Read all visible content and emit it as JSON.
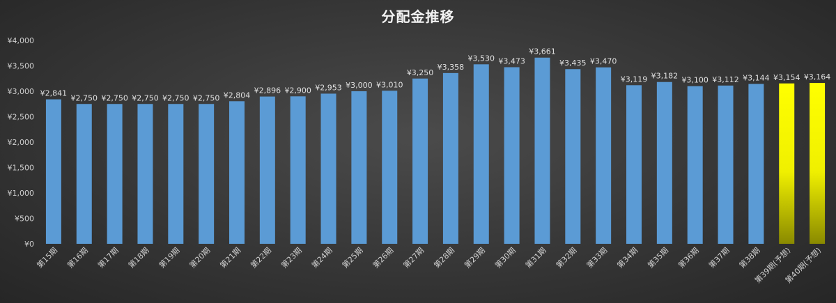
{
  "chart_data": {
    "type": "bar",
    "title": "分配金推移",
    "categories": [
      "第15期",
      "第16期",
      "第17期",
      "第18期",
      "第19期",
      "第20期",
      "第21期",
      "第22期",
      "第23期",
      "第24期",
      "第25期",
      "第26期",
      "第27期",
      "第28期",
      "第29期",
      "第30期",
      "第31期",
      "第32期",
      "第33期",
      "第34期",
      "第35期",
      "第36期",
      "第37期",
      "第38期",
      "第39期(予想)",
      "第40期(予想)"
    ],
    "values": [
      2841,
      2750,
      2750,
      2750,
      2750,
      2750,
      2804,
      2896,
      2900,
      2953,
      3000,
      3010,
      3250,
      3358,
      3530,
      3473,
      3661,
      3435,
      3470,
      3119,
      3182,
      3100,
      3112,
      3144,
      3154,
      3164
    ],
    "data_labels": [
      "¥2,841",
      "¥2,750",
      "¥2,750",
      "¥2,750",
      "¥2,750",
      "¥2,750",
      "¥2,804",
      "¥2,896",
      "¥2,900",
      "¥2,953",
      "¥3,000",
      "¥3,010",
      "¥3,250",
      "¥3,358",
      "¥3,530",
      "¥3,473",
      "¥3,661",
      "¥3,435",
      "¥3,470",
      "¥3,119",
      "¥3,182",
      "¥3,100",
      "¥3,112",
      "¥3,144",
      "¥3,154",
      "¥3,164"
    ],
    "y_ticks": [
      0,
      500,
      1000,
      1500,
      2000,
      2500,
      3000,
      3500,
      4000
    ],
    "y_tick_labels": [
      "¥0",
      "¥500",
      "¥1,000",
      "¥1,500",
      "¥2,000",
      "¥2,500",
      "¥3,000",
      "¥3,500",
      "¥4,000"
    ],
    "ylim": [
      0,
      4000
    ],
    "grid": false,
    "legend": "none",
    "colors": {
      "actual": "#5b9bd5",
      "forecast": "#ffff00",
      "forecast_shade": "#8a8a00"
    },
    "forecast_indices": [
      24,
      25
    ]
  }
}
